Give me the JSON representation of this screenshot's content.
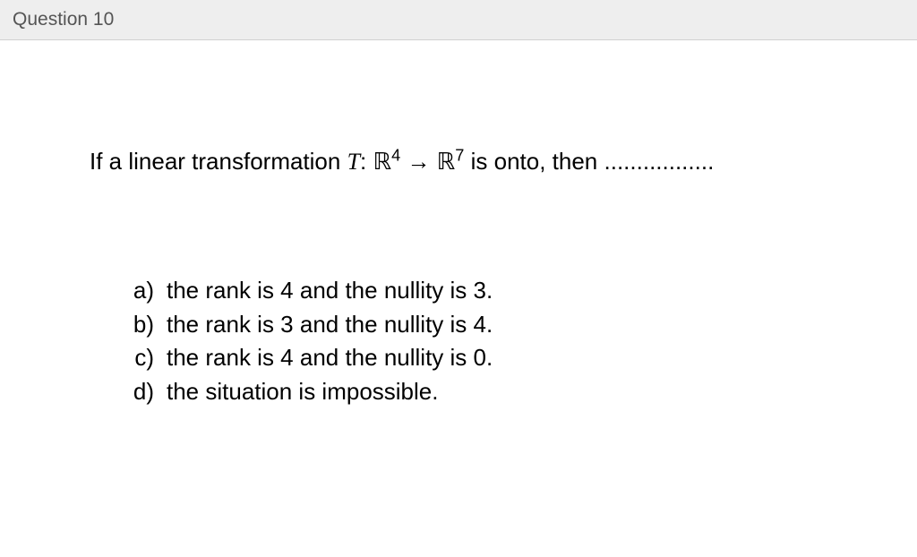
{
  "header": {
    "title": "Question 10"
  },
  "question": {
    "prefix": "If a linear transformation ",
    "math_T": "T",
    "colon": ": ",
    "R": "ℝ",
    "exp1": "4",
    "arrow": " → ",
    "exp2": "7",
    "suffix": " is onto, then ",
    "dots": "................."
  },
  "options": [
    {
      "label": "a)",
      "text": "the rank is 4 and the nullity is 3."
    },
    {
      "label": "b)",
      "text": "the rank is 3 and the nullity is 4."
    },
    {
      "label": "c)",
      "text": "the rank is 4 and the nullity is 0."
    },
    {
      "label": "d)",
      "text": "the situation is impossible."
    }
  ],
  "styling": {
    "header_bg": "#eeeeee",
    "header_text_color": "#555555",
    "body_text_color": "#000000",
    "body_bg": "#ffffff",
    "font_size_header": 21,
    "font_size_body": 26
  }
}
